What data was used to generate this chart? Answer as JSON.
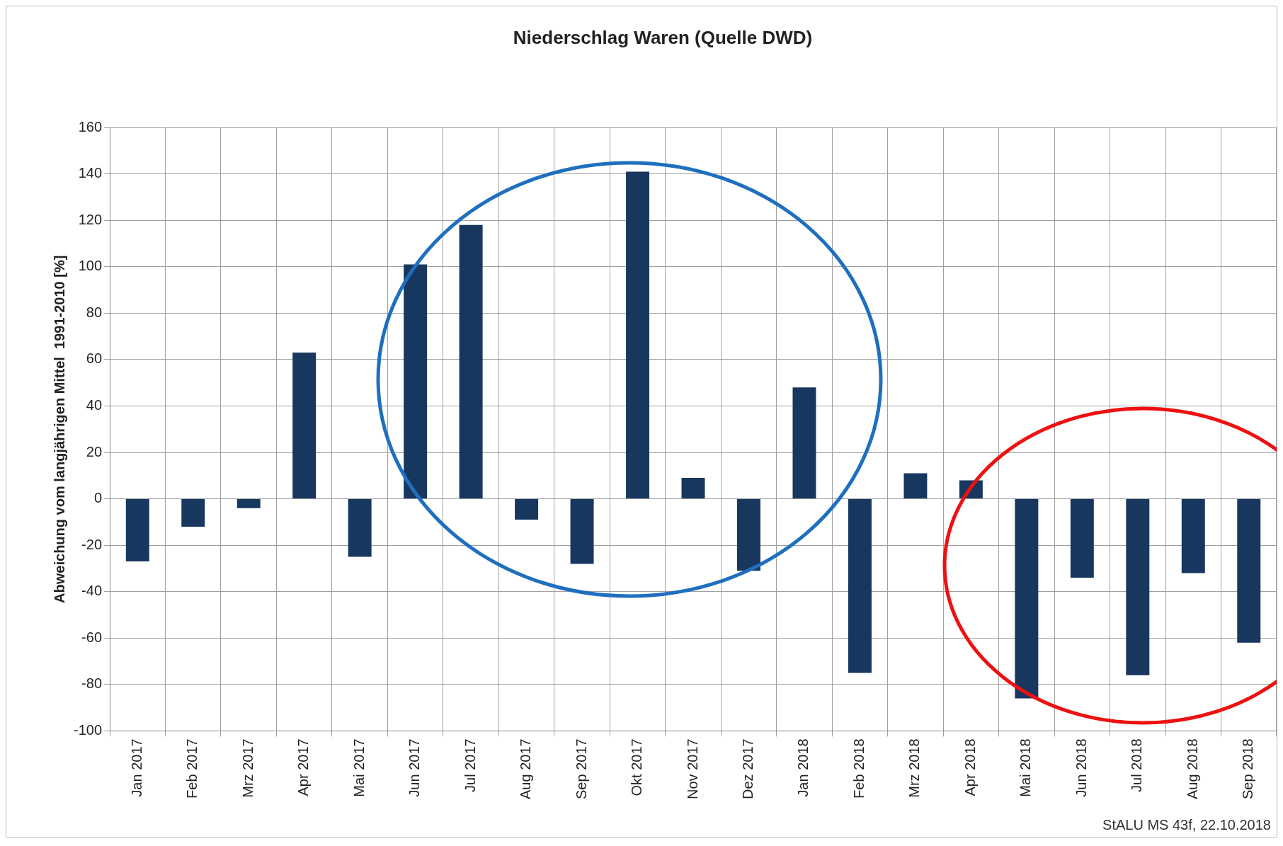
{
  "chart_data": {
    "type": "bar",
    "title": "Niederschlag Waren (Quelle DWD)",
    "ylabel": "Abweichung vom langjährigen Mittel  1991-2010 [%]",
    "categories": [
      "Jan 2017",
      "Feb 2017",
      "Mrz 2017",
      "Apr 2017",
      "Mai 2017",
      "Jun 2017",
      "Jul 2017",
      "Aug 2017",
      "Sep 2017",
      "Okt 2017",
      "Nov 2017",
      "Dez 2017",
      "Jan 2018",
      "Feb 2018",
      "Mrz 2018",
      "Apr 2018",
      "Mai 2018",
      "Jun 2018",
      "Jul 2018",
      "Aug 2018",
      "Sep 2018"
    ],
    "values": [
      -27,
      -12,
      -4,
      63,
      -25,
      101,
      118,
      -9,
      -28,
      141,
      9,
      -31,
      48,
      -75,
      11,
      8,
      -86,
      -34,
      -76,
      -32,
      -62
    ],
    "color": "#17375e",
    "ylim": [
      -100,
      160
    ],
    "yticks": [
      -100,
      -80,
      -60,
      -40,
      -20,
      0,
      20,
      40,
      60,
      80,
      100,
      120,
      140,
      160
    ],
    "grid": true,
    "annotations": [
      "StALU MS 43f, 22.10.2018"
    ]
  }
}
